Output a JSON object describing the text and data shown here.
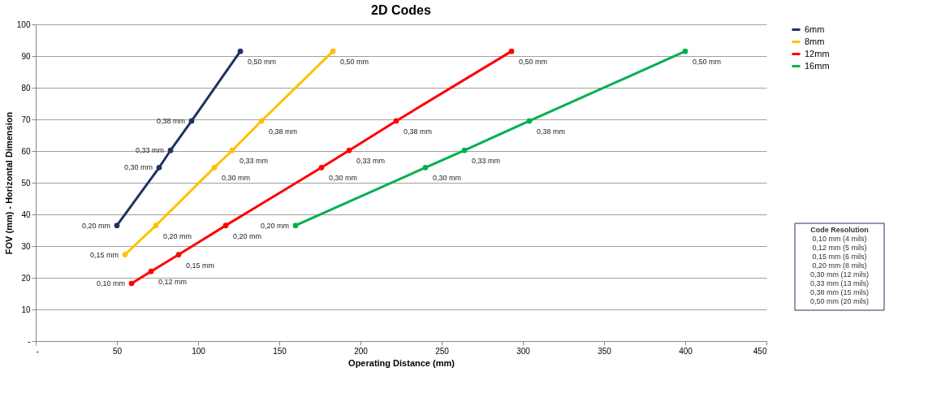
{
  "chart_data": {
    "type": "line",
    "title": "2D Codes",
    "xlabel": "Operating Distance (mm)",
    "ylabel": "FOV (mm) - Horizontal Dimension",
    "xlim": [
      0,
      450
    ],
    "xticks": [
      {
        "value": 0,
        "label": "-"
      },
      50,
      100,
      150,
      200,
      250,
      300,
      350,
      400,
      450
    ],
    "ylim": [
      0,
      100
    ],
    "yticks": [
      {
        "value": 0,
        "label": "-"
      },
      10,
      20,
      30,
      40,
      50,
      60,
      70,
      80,
      90,
      100
    ],
    "grid": "y",
    "legend": "right",
    "marker": "circle",
    "line_style": "solid",
    "series": [
      {
        "name": "6mm",
        "color": "#1f3264",
        "x": [
          50,
          76,
          83,
          96,
          126
        ],
        "values": [
          36.5,
          54.8,
          60.2,
          69.5,
          91.5
        ]
      },
      {
        "name": "8mm",
        "color": "#ffc000",
        "x": [
          55,
          74,
          110,
          121,
          139,
          183
        ],
        "values": [
          27.3,
          36.5,
          54.8,
          60.2,
          69.5,
          91.5
        ]
      },
      {
        "name": "12mm",
        "color": "#ff0000",
        "x": [
          59,
          71,
          88,
          117,
          176,
          193,
          222,
          293
        ],
        "values": [
          18.2,
          22,
          27.3,
          36.5,
          54.8,
          60.2,
          69.5,
          91.5
        ]
      },
      {
        "name": "16mm",
        "color": "#00b050",
        "x": [
          160,
          240,
          264,
          304,
          400
        ],
        "values": [
          36.5,
          54.8,
          60.2,
          69.5,
          91.5
        ]
      }
    ],
    "annotations": [
      "Code Resolution",
      "0,10 mm (4 mils)",
      "0,12 mm (5 mils)",
      "0,15 mm (6 mils)",
      "0,20 mm (8 mils)",
      "0,30 mm (12 mils)",
      "0,33 mm (13 mils)",
      "0,38 mm (15 mils)",
      "0,50 mm (20 mils)",
      {
        "text": "0,20 mm",
        "x": 50,
        "y": 36.5
      },
      {
        "text": "0,30 mm",
        "x": 76,
        "y": 54.8
      },
      {
        "text": "0,33 mm",
        "x": 83,
        "y": 60.2
      },
      {
        "text": "0,38 mm",
        "x": 96,
        "y": 69.5
      },
      {
        "text": "0,50 mm",
        "x": 126,
        "y": 91.5
      },
      {
        "text": "0,15 mm",
        "x": 55,
        "y": 27.3
      },
      {
        "text": "0,20 mm",
        "x": 74,
        "y": 36.5
      },
      {
        "text": "0,30 mm",
        "x": 110,
        "y": 54.8
      },
      {
        "text": "0,33 mm",
        "x": 121,
        "y": 60.2
      },
      {
        "text": "0,38 mm",
        "x": 139,
        "y": 69.5
      },
      {
        "text": "0,50 mm",
        "x": 183,
        "y": 91.5
      },
      {
        "text": "0,10 mm",
        "x": 59,
        "y": 18.2
      },
      {
        "text": "0,12 mm",
        "x": 71,
        "y": 22
      },
      {
        "text": "0,15 mm",
        "x": 88,
        "y": 27.3
      },
      {
        "text": "0,20 mm",
        "x": 117,
        "y": 36.5
      },
      {
        "text": "0,30 mm",
        "x": 176,
        "y": 54.8
      },
      {
        "text": "0,33 mm",
        "x": 193,
        "y": 60.2
      },
      {
        "text": "0,38 mm",
        "x": 222,
        "y": 69.5
      },
      {
        "text": "0,50 mm",
        "x": 293,
        "y": 91.5
      },
      {
        "text": "0,20 mm",
        "x": 160,
        "y": 36.5
      },
      {
        "text": "0,30 mm",
        "x": 240,
        "y": 54.8
      },
      {
        "text": "0,33 mm",
        "x": 264,
        "y": 60.2
      },
      {
        "text": "0,38 mm",
        "x": 304,
        "y": 69.5
      },
      {
        "text": "0,50 mm",
        "x": 400,
        "y": 91.5
      }
    ]
  }
}
